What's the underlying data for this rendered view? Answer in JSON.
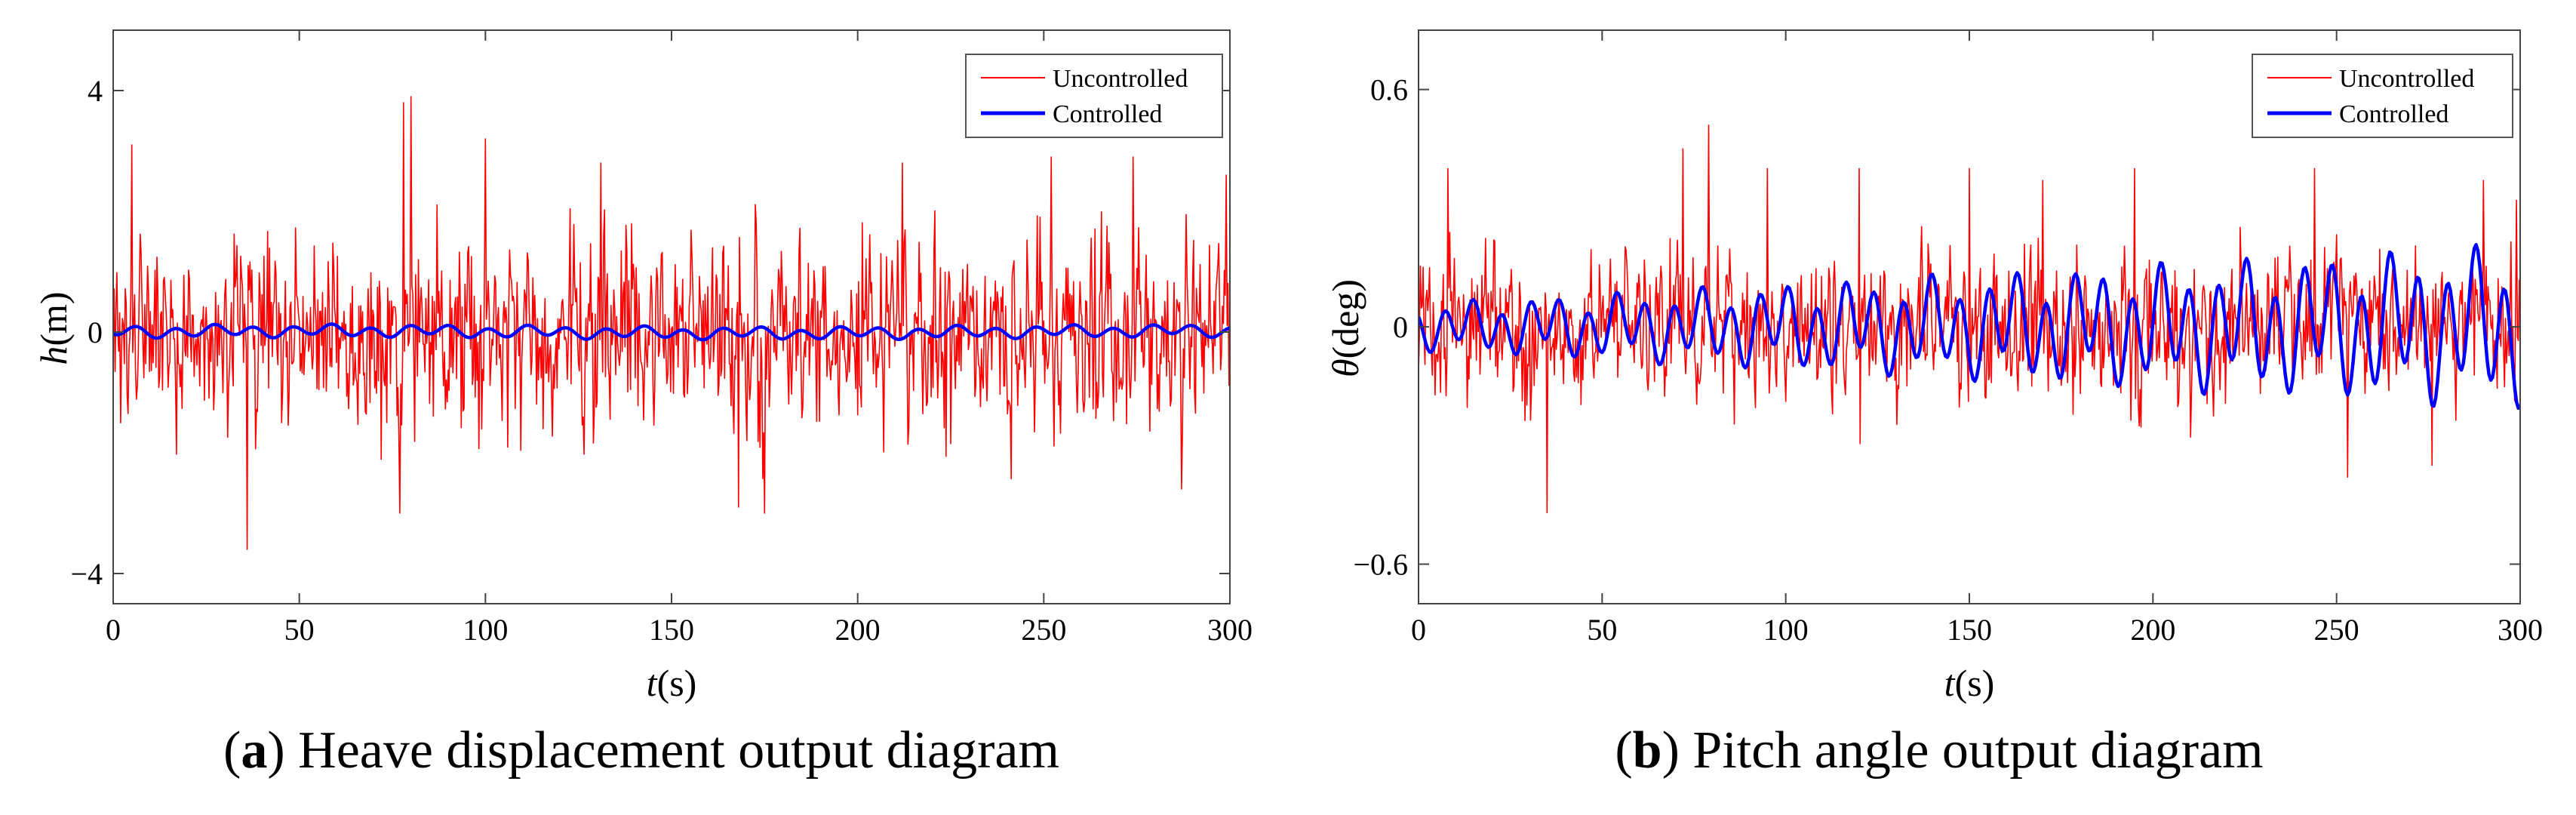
{
  "chart_data": [
    {
      "type": "line",
      "panel_tag": "a",
      "caption": "Heave displacement output diagram",
      "xlabel_var": "t",
      "xlabel_unit": "(s)",
      "ylabel_var": "h",
      "ylabel_unit": "(m)",
      "xlim": [
        0,
        300
      ],
      "ylim": [
        -4.5,
        5.0
      ],
      "xticks": [
        0,
        50,
        100,
        150,
        200,
        250,
        300
      ],
      "xtick_labels": [
        "0",
        "50",
        "100",
        "150",
        "200",
        "250",
        "300"
      ],
      "yticks": [
        -4,
        0,
        4
      ],
      "ytick_labels": [
        "−4",
        "0",
        "4"
      ],
      "grid": false,
      "legend_position": "top-right",
      "series": [
        {
          "name": "Uncontrolled",
          "color": "#ff0000",
          "style": "noise",
          "dt": 0.25,
          "stddev": 1.05,
          "peaks": [
            [
              5,
              3.1
            ],
            [
              36,
              -3.6
            ],
            [
              77,
              -3.0
            ],
            [
              78,
              3.8
            ],
            [
              80,
              3.9
            ],
            [
              100,
              3.2
            ],
            [
              131,
              2.8
            ],
            [
              168,
              -2.9
            ],
            [
              175,
              -3.0
            ],
            [
              212,
              2.8
            ],
            [
              252,
              2.9
            ],
            [
              274,
              2.9
            ],
            [
              287,
              -2.6
            ],
            [
              299,
              2.6
            ]
          ]
        },
        {
          "name": "Controlled",
          "color": "#0000ff",
          "style": "smooth",
          "dt": 0.5,
          "amplitude": 0.1,
          "period": 10.5,
          "amp_growth": 0.0,
          "bias": 0.02
        }
      ]
    },
    {
      "type": "line",
      "panel_tag": "b",
      "caption": "Pitch angle output diagram",
      "xlabel_var": "t",
      "xlabel_unit": "(s)",
      "ylabel_var": "θ",
      "ylabel_unit": "(deg)",
      "xlim": [
        0,
        300
      ],
      "ylim": [
        -0.7,
        0.75
      ],
      "xticks": [
        0,
        50,
        100,
        150,
        200,
        250,
        300
      ],
      "xtick_labels": [
        "0",
        "50",
        "100",
        "150",
        "200",
        "250",
        "300"
      ],
      "yticks": [
        -0.6,
        0,
        0.6
      ],
      "ytick_labels": [
        "−0.6",
        "0",
        "0.6"
      ],
      "grid": false,
      "legend_position": "top-right",
      "series": [
        {
          "name": "Uncontrolled",
          "color": "#ff0000",
          "style": "noise",
          "dt": 0.25,
          "stddev": 0.12,
          "peaks": [
            [
              8,
              0.4
            ],
            [
              35,
              -0.47
            ],
            [
              72,
              0.45
            ],
            [
              79,
              0.51
            ],
            [
              95,
              0.4
            ],
            [
              120,
              0.4
            ],
            [
              150,
              0.4
            ],
            [
              170,
              0.37
            ],
            [
              195,
              0.4
            ],
            [
              244,
              0.4
            ],
            [
              253,
              -0.38
            ],
            [
              276,
              -0.35
            ],
            [
              290,
              0.37
            ],
            [
              299,
              0.32
            ]
          ]
        },
        {
          "name": "Controlled",
          "color": "#0000ff",
          "style": "smooth",
          "dt": 0.5,
          "amplitude": 0.055,
          "period": 7.8,
          "amp_growth": 0.08,
          "bias": 0.0
        }
      ]
    }
  ]
}
